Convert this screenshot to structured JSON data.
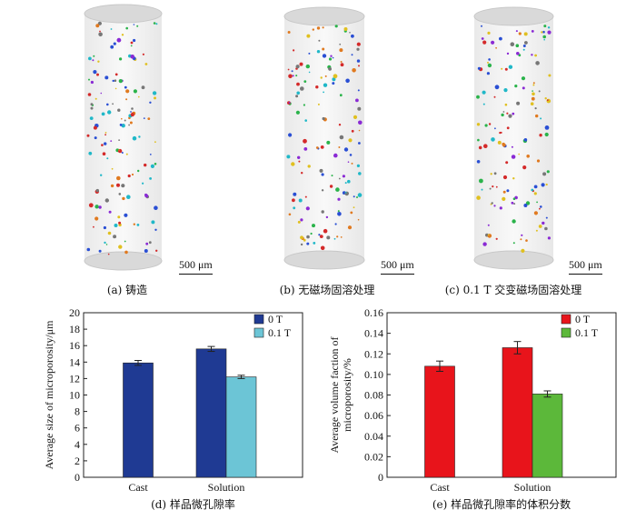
{
  "top_panels": [
    {
      "caption": "(a) 铸造",
      "scale_label": "500 μm"
    },
    {
      "caption": "(b) 无磁场固溶处理",
      "scale_label": "500 μm"
    },
    {
      "caption": "(c) 0.1 T 交变磁场固溶处理",
      "scale_label": "500 μm"
    }
  ],
  "chart_data": [
    {
      "type": "bar",
      "caption": "(d) 样品微孔隙率",
      "ylabel": "Average size of microporosity/μm",
      "xlabel": "",
      "categories": [
        "Cast",
        "Solution"
      ],
      "ylim": [
        0,
        20
      ],
      "yticks": [
        "0",
        "2",
        "4",
        "6",
        "8",
        "10",
        "12",
        "14",
        "16",
        "18",
        "20"
      ],
      "legend_position": "top-right",
      "series": [
        {
          "name": "0 T",
          "color": "#1f3a93",
          "values": [
            13.9,
            15.6
          ],
          "errors": [
            0.3,
            0.3
          ]
        },
        {
          "name": "0.1 T",
          "color": "#6cc5d6",
          "values": [
            null,
            12.2
          ],
          "errors": [
            null,
            0.2
          ]
        }
      ]
    },
    {
      "type": "bar",
      "caption": "(e) 样品微孔隙率的体积分数",
      "ylabel": "Average volume faction of microporosity/%",
      "ylabel_lines": [
        "Average volume faction of",
        "microporosity/%"
      ],
      "xlabel": "",
      "categories": [
        "Cast",
        "Solution"
      ],
      "ylim": [
        0,
        0.16
      ],
      "yticks": [
        "0",
        "0.02",
        "0.04",
        "0.06",
        "0.08",
        "0.10",
        "0.12",
        "0.14",
        "0.16"
      ],
      "legend_position": "top-right",
      "series": [
        {
          "name": "0 T",
          "color": "#e8141b",
          "values": [
            0.108,
            0.126
          ],
          "errors": [
            0.005,
            0.006
          ]
        },
        {
          "name": "0.1 T",
          "color": "#5cb83a",
          "values": [
            null,
            0.081
          ],
          "errors": [
            null,
            0.003
          ]
        }
      ]
    }
  ]
}
